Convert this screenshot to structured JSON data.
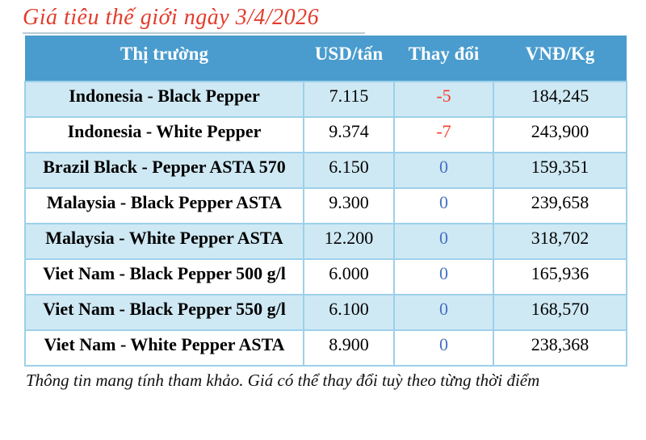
{
  "title": "Giá tiêu thế giới ngày 3/4/2026",
  "table": {
    "columns": [
      "Thị trường",
      "USD/tấn",
      "Thay đổi",
      "VNĐ/Kg"
    ],
    "rows": [
      {
        "market": "Indonesia - Black Pepper",
        "usd": "7.115",
        "change": "-5",
        "vnd": "184,245"
      },
      {
        "market": "Indonesia - White Pepper",
        "usd": "9.374",
        "change": "-7",
        "vnd": "243,900"
      },
      {
        "market": "Brazil Black - Pepper ASTA 570",
        "usd": "6.150",
        "change": "0",
        "vnd": "159,351"
      },
      {
        "market": "Malaysia - Black Pepper ASTA",
        "usd": "9.300",
        "change": "0",
        "vnd": "239,658"
      },
      {
        "market": "Malaysia - White Pepper ASTA",
        "usd": "12.200",
        "change": "0",
        "vnd": "318,702"
      },
      {
        "market": "Viet Nam - Black Pepper 500 g/l",
        "usd": "6.000",
        "change": "0",
        "vnd": "165,936"
      },
      {
        "market": "Viet Nam - Black Pepper 550 g/l",
        "usd": "6.100",
        "change": "0",
        "vnd": "168,570"
      },
      {
        "market": "Viet Nam - White Pepper ASTA",
        "usd": "8.900",
        "change": "0",
        "vnd": "238,368"
      }
    ]
  },
  "footer": "Thông tin mang tính tham khảo. Giá có thể thay đổi tuỳ theo từng thời điểm",
  "colors": {
    "header_bg": "#4a9cce",
    "row_alt_bg": "#cfe9f4",
    "cell_border": "#9dd0ea",
    "title_red": "#e23c2c",
    "change_negative": "#f93b2a",
    "change_zero": "#4472c4"
  }
}
